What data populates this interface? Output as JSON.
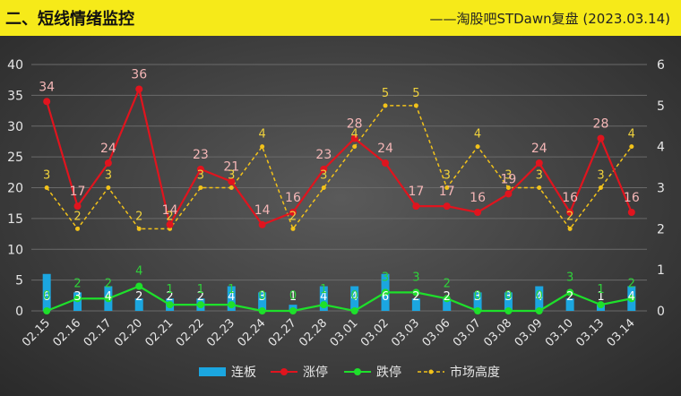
{
  "header": {
    "title": "二、短线情绪监控",
    "source": "——淘股吧STDawn复盘 (2023.03.14)"
  },
  "chart_data": {
    "type": "bar+line",
    "categories": [
      "02.15",
      "02.16",
      "02.17",
      "02.20",
      "02.21",
      "02.22",
      "02.23",
      "02.24",
      "02.27",
      "02.28",
      "03.01",
      "03.02",
      "03.03",
      "03.06",
      "03.07",
      "03.08",
      "03.09",
      "03.10",
      "03.13",
      "03.14"
    ],
    "left_axis": {
      "ylim": [
        0,
        40
      ],
      "ticks": [
        "0",
        "5",
        "10",
        "15",
        "20",
        "25",
        "30",
        "35",
        "40"
      ]
    },
    "right_axis": {
      "ylim": [
        0,
        6
      ],
      "ticks": [
        "0",
        "1",
        "2",
        "3",
        "4",
        "5",
        "6"
      ]
    },
    "series": [
      {
        "name": "连板",
        "type": "bar",
        "axis": "left",
        "color": "#1ba6e0",
        "values": [
          6,
          3,
          4,
          2,
          2,
          2,
          4,
          3,
          1,
          4,
          4,
          6,
          2,
          2,
          3,
          3,
          4,
          2,
          1,
          4
        ]
      },
      {
        "name": "涨停",
        "type": "line",
        "axis": "left",
        "color": "#e0141e",
        "label_color": "#f4b6b6",
        "values": [
          34,
          17,
          24,
          36,
          14,
          23,
          21,
          14,
          16,
          23,
          28,
          24,
          17,
          17,
          16,
          19,
          24,
          16,
          28,
          16
        ]
      },
      {
        "name": "跌停",
        "type": "line",
        "axis": "left",
        "color": "#1ee02b",
        "label_color": "#2fd13a",
        "values": [
          0,
          2,
          2,
          4,
          1,
          1,
          1,
          0,
          0,
          1,
          0,
          3,
          3,
          2,
          0,
          0,
          0,
          3,
          1,
          2
        ]
      },
      {
        "name": "市场高度",
        "type": "dashed-line",
        "axis": "right",
        "color": "#f2c21a",
        "label_color": "#f0d23c",
        "values": [
          3,
          2,
          3,
          2,
          2,
          3,
          3,
          4,
          2,
          3,
          4,
          5,
          5,
          3,
          4,
          3,
          3,
          2,
          3,
          4
        ]
      }
    ],
    "legend": "bottom-center"
  }
}
